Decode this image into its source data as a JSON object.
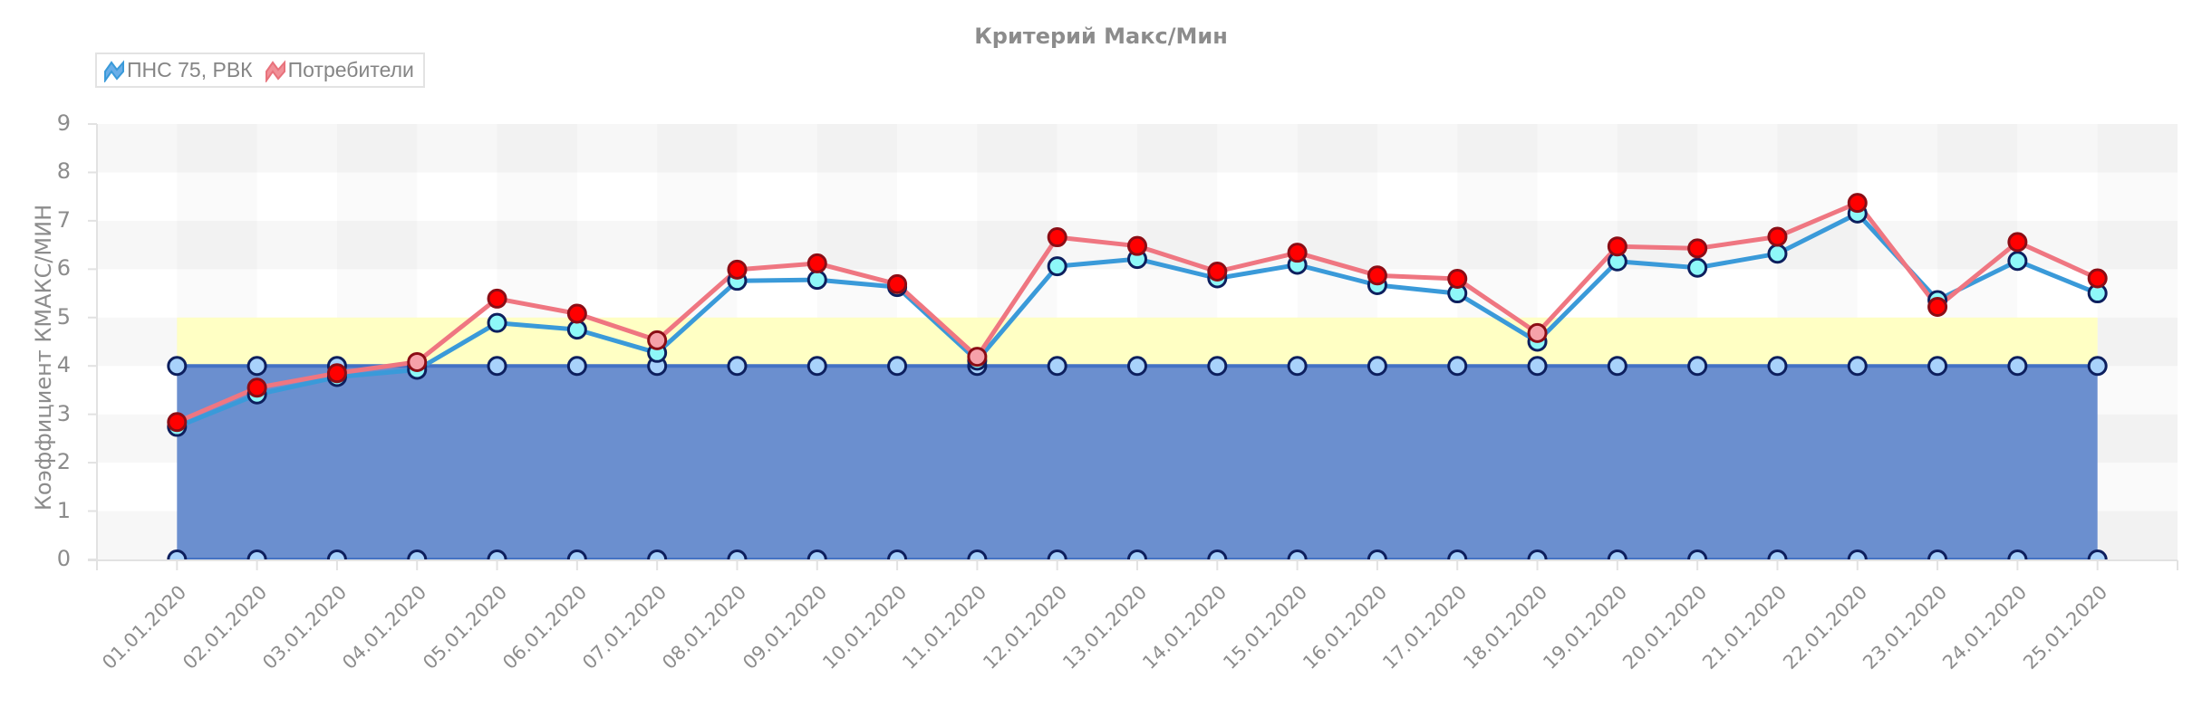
{
  "chart_data": {
    "type": "line",
    "title": "Критерий Макс/Мин",
    "xlabel": "",
    "ylabel": "Коэффициент КМАКС/МИН",
    "ylim": [
      0,
      9
    ],
    "yticks": [
      0,
      1,
      2,
      3,
      4,
      5,
      6,
      7,
      8,
      9
    ],
    "grid": "alternating bands",
    "legend_position": "top-left",
    "categories": [
      "01.01.2020",
      "02.01.2020",
      "03.01.2020",
      "04.01.2020",
      "05.01.2020",
      "06.01.2020",
      "07.01.2020",
      "08.01.2020",
      "09.01.2020",
      "10.01.2020",
      "11.01.2020",
      "12.01.2020",
      "13.01.2020",
      "14.01.2020",
      "15.01.2020",
      "16.01.2020",
      "17.01.2020",
      "18.01.2020",
      "19.01.2020",
      "20.01.2020",
      "21.01.2020",
      "22.01.2020",
      "23.01.2020",
      "24.01.2020",
      "25.01.2020"
    ],
    "series": [
      {
        "name": "ПНС 75, РВК",
        "color": "#3a9ad9",
        "marker_fill": "#8ef8f8",
        "values": [
          2.74,
          3.41,
          3.77,
          3.92,
          4.89,
          4.75,
          4.27,
          5.76,
          5.78,
          5.63,
          4.11,
          6.06,
          6.21,
          5.81,
          6.09,
          5.67,
          5.5,
          4.5,
          6.16,
          6.03,
          6.32,
          7.15,
          5.36,
          6.17,
          5.5
        ]
      },
      {
        "name": "Потребители",
        "color": "#ef7681",
        "marker_fill": "#ff0000",
        "marker_fill_warning": "#f6a1a9",
        "values": [
          2.84,
          3.55,
          3.85,
          4.08,
          5.39,
          5.08,
          4.53,
          5.99,
          6.12,
          5.69,
          4.19,
          6.66,
          6.48,
          5.95,
          6.34,
          5.87,
          5.8,
          4.68,
          6.47,
          6.43,
          6.67,
          7.37,
          5.22,
          6.56,
          5.81
        ]
      }
    ],
    "bands": [
      {
        "name": "norm",
        "from": 0,
        "to": 4,
        "color": "#6b8fcf",
        "edge_color": "#4472c4",
        "marker_fill": "#a8d2fb"
      },
      {
        "name": "warning",
        "from": 4,
        "to": 5,
        "color": "#ffffc4"
      }
    ]
  },
  "legend": {
    "items": [
      {
        "label": "ПНС 75, РВК",
        "color": "#3a9ad9",
        "fill": "#6aaee8"
      },
      {
        "label": "Потребители",
        "color": "#e8727c",
        "fill": "#f19098"
      }
    ]
  },
  "colors": {
    "marker_stroke": "#0d1f5e",
    "red_marker_stroke": "#8b0d15",
    "axis_text": "#8c8c8c",
    "grid_line": "#e2e2e2"
  }
}
